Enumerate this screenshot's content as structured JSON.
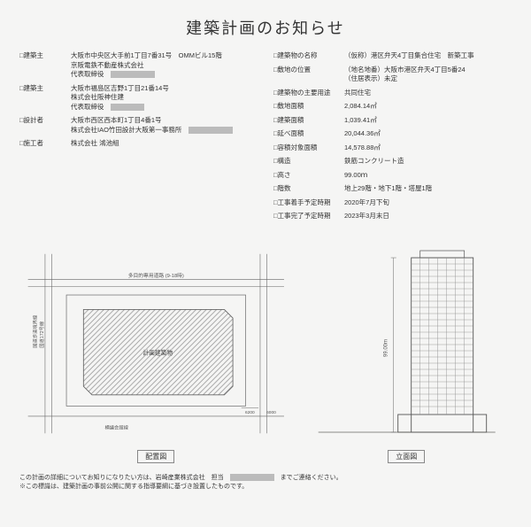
{
  "title": "建築計画のお知らせ",
  "left": [
    {
      "label": "□建築主",
      "lines": [
        "大阪市中央区大手前1丁目7番31号　OMMビル15階",
        "京阪電鉄不動産株式会社",
        "代表取締役　[R1]"
      ]
    },
    {
      "label": "□建築主",
      "lines": [
        "大阪市福島区吉野1丁目21番14号",
        "株式会社阪神住建",
        "代表取締役　[R2]"
      ]
    },
    {
      "label": "□設計者",
      "lines": [
        "大阪市西区西本町1丁目4番1号",
        "株式会社IAO竹田設計大阪第一事務所　[R1]"
      ]
    },
    {
      "label": "□施工者",
      "lines": [
        "株式会社 鴻池組"
      ]
    }
  ],
  "right": [
    {
      "label": "□建築物の名称",
      "value": "（仮称）港区弁天4丁目集合住宅　新築工事"
    },
    {
      "label": "□敷地の位置",
      "value": "（地名地番）大阪市港区弁天4丁目5番24\n（住居表示）未定"
    },
    {
      "label": "□建築物の主要用途",
      "value": "共同住宅"
    },
    {
      "label": "□敷地面積",
      "value": "2,084.14㎡"
    },
    {
      "label": "□建築面積",
      "value": "1,039.41㎡"
    },
    {
      "label": "□延べ面積",
      "value": "20,044.36㎡"
    },
    {
      "label": "□容積対象面積",
      "value": "14,578.88㎡"
    },
    {
      "label": "□構造",
      "value": "鉄筋コンクリート造"
    },
    {
      "label": "□高さ",
      "value": "99.00ｍ"
    },
    {
      "label": "□階数",
      "value": "地上29階・地下1階・塔屋1階"
    },
    {
      "label": "□工事着手予定時期",
      "value": "2020年7月下旬"
    },
    {
      "label": "□工事完了予定時期",
      "value": "2023年3月末日"
    }
  ],
  "dia": {
    "plan": "配置図",
    "elev": "立面図",
    "plan_label": "計画建築物",
    "height_label": "99.00m"
  },
  "footer1": "この計画の詳細についてお知りになりたい方は、岩崎産業株式会社　担当　",
  "footer2": "　までご連絡ください。",
  "footer3": "※この標識は、建築計画の事前公開に関する指導要綱に基づき設置したものです。",
  "style": {
    "background_color": "#f5f5f4",
    "text_color": "#333333",
    "redact_color": "#bbbbbb",
    "hatch_color": "#999999",
    "line_color": "#666666",
    "title_fontsize": 18,
    "body_fontsize": 7.5,
    "footer_fontsize": 7
  }
}
